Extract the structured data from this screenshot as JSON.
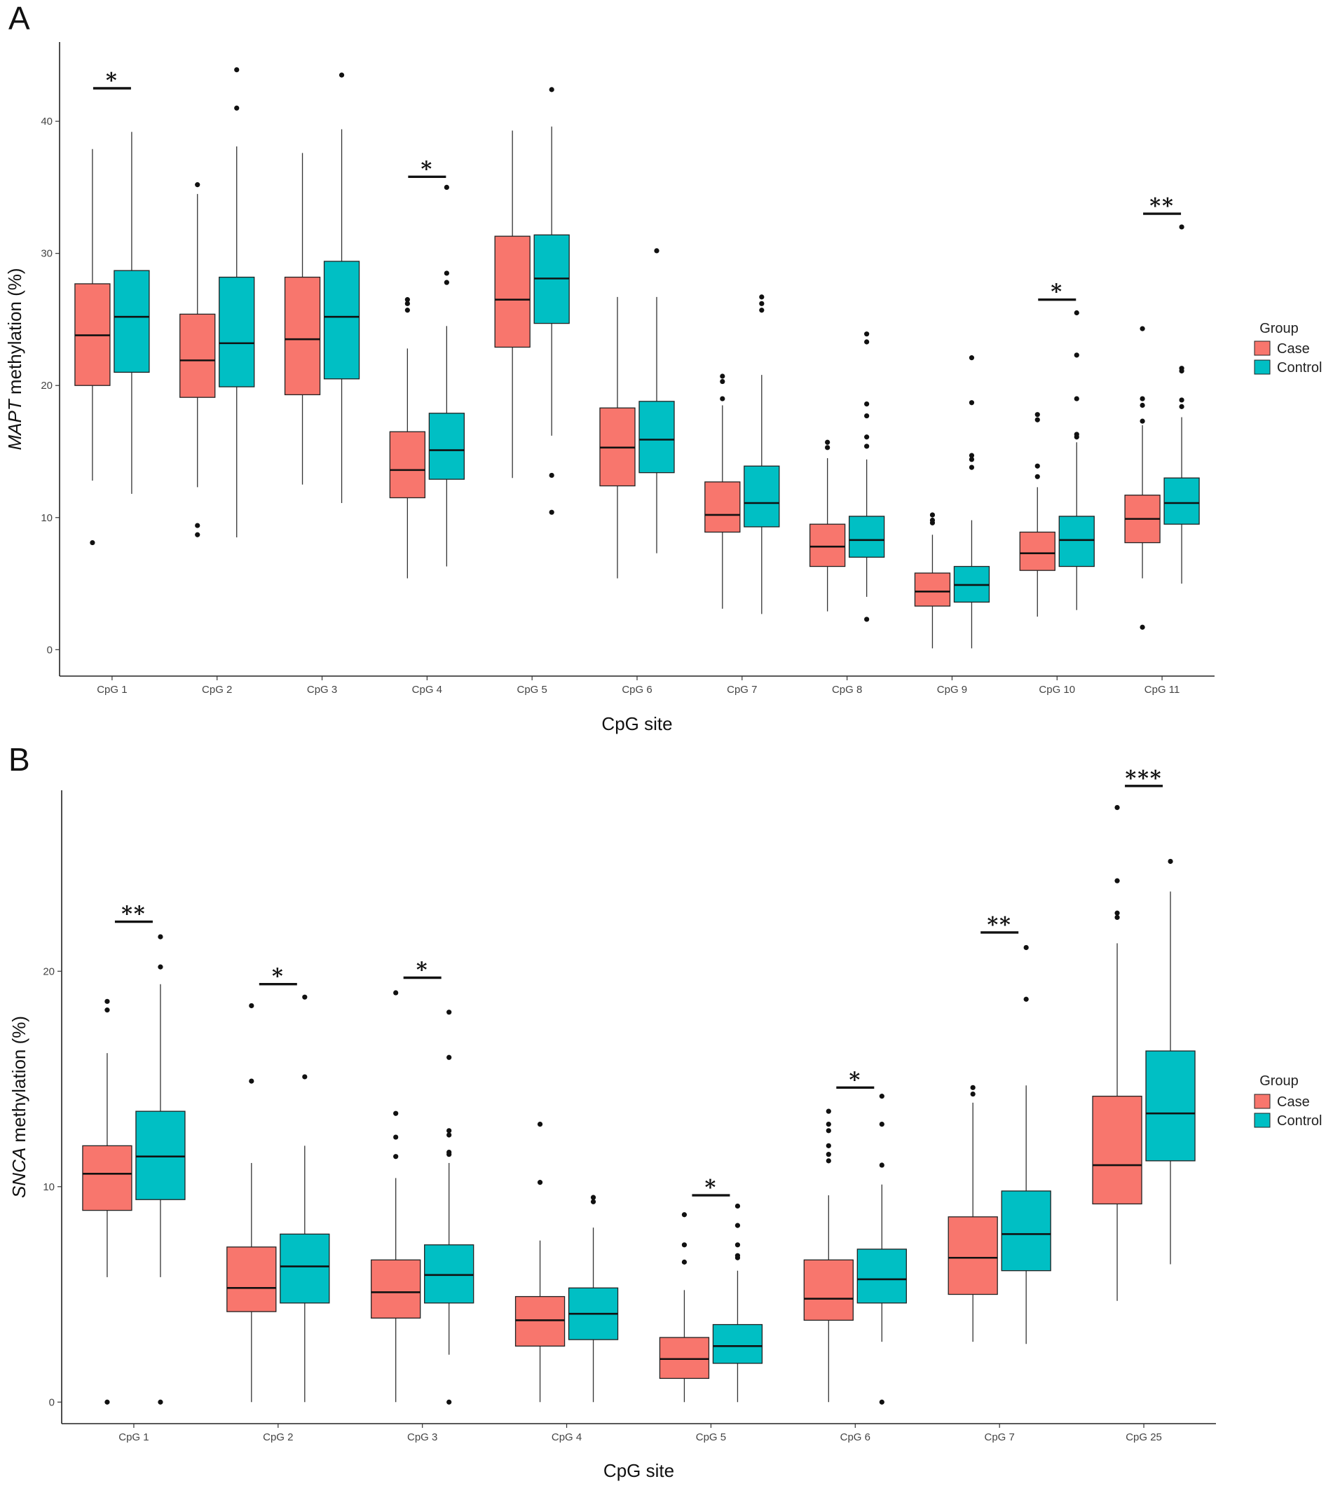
{
  "chart_data": [
    {
      "panel": "A",
      "type": "box",
      "xlabel": "CpG site",
      "ylabel_italic": "MAPT",
      "ylabel_rest": " methylation (%)",
      "ylim": [
        -2,
        46
      ],
      "yticks": [
        0,
        10,
        20,
        30,
        40
      ],
      "legend": {
        "title": "Group",
        "position": "right",
        "entries": [
          "Case",
          "Control"
        ]
      },
      "colors": {
        "Case": "#F8766D",
        "Control": "#00BFC4"
      },
      "categories": [
        "CpG 1",
        "CpG 2",
        "CpG 3",
        "CpG 4",
        "CpG 5",
        "CpG 6",
        "CpG 7",
        "CpG 8",
        "CpG 9",
        "CpG 10",
        "CpG 11"
      ],
      "series": [
        {
          "name": "Case",
          "boxes": [
            {
              "whislo": 12.8,
              "q1": 20.0,
              "med": 23.8,
              "q3": 27.7,
              "whishi": 37.9,
              "fliers": [
                8.1
              ]
            },
            {
              "whislo": 12.3,
              "q1": 19.1,
              "med": 21.9,
              "q3": 25.4,
              "whishi": 34.5,
              "fliers": [
                35.2,
                9.4,
                8.7
              ]
            },
            {
              "whislo": 12.5,
              "q1": 19.3,
              "med": 23.5,
              "q3": 28.2,
              "whishi": 37.6,
              "fliers": []
            },
            {
              "whislo": 5.4,
              "q1": 11.5,
              "med": 13.6,
              "q3": 16.5,
              "whishi": 22.8,
              "fliers": [
                26.5,
                26.2,
                25.7
              ]
            },
            {
              "whislo": 13.0,
              "q1": 22.9,
              "med": 26.5,
              "q3": 31.3,
              "whishi": 39.3,
              "fliers": []
            },
            {
              "whislo": 5.4,
              "q1": 12.4,
              "med": 15.3,
              "q3": 18.3,
              "whishi": 26.7,
              "fliers": []
            },
            {
              "whislo": 3.1,
              "q1": 8.9,
              "med": 10.2,
              "q3": 12.7,
              "whishi": 18.5,
              "fliers": [
                20.7,
                20.3,
                19.0
              ]
            },
            {
              "whislo": 2.9,
              "q1": 6.3,
              "med": 7.8,
              "q3": 9.5,
              "whishi": 14.5,
              "fliers": [
                15.7,
                15.3
              ]
            },
            {
              "whislo": 0.1,
              "q1": 3.3,
              "med": 4.4,
              "q3": 5.8,
              "whishi": 8.7,
              "fliers": [
                10.2,
                9.8,
                9.6
              ]
            },
            {
              "whislo": 2.5,
              "q1": 6.0,
              "med": 7.3,
              "q3": 8.9,
              "whishi": 12.3,
              "fliers": [
                17.8,
                17.4,
                13.9,
                13.1
              ]
            },
            {
              "whislo": 5.4,
              "q1": 8.1,
              "med": 9.9,
              "q3": 11.7,
              "whishi": 17.0,
              "fliers": [
                24.3,
                19.0,
                18.5,
                17.3,
                1.7
              ]
            }
          ]
        },
        {
          "name": "Control",
          "boxes": [
            {
              "whislo": 11.8,
              "q1": 21.0,
              "med": 25.2,
              "q3": 28.7,
              "whishi": 39.2,
              "fliers": []
            },
            {
              "whislo": 8.5,
              "q1": 19.9,
              "med": 23.2,
              "q3": 28.2,
              "whishi": 38.1,
              "fliers": [
                43.9,
                41.0
              ]
            },
            {
              "whislo": 11.1,
              "q1": 20.5,
              "med": 25.2,
              "q3": 29.4,
              "whishi": 39.4,
              "fliers": [
                43.5
              ]
            },
            {
              "whislo": 6.3,
              "q1": 12.9,
              "med": 15.1,
              "q3": 17.9,
              "whishi": 24.5,
              "fliers": [
                35.0,
                28.5,
                27.8
              ]
            },
            {
              "whislo": 16.2,
              "q1": 24.7,
              "med": 28.1,
              "q3": 31.4,
              "whishi": 39.6,
              "fliers": [
                42.4,
                13.2,
                10.4
              ]
            },
            {
              "whislo": 7.3,
              "q1": 13.4,
              "med": 15.9,
              "q3": 18.8,
              "whishi": 26.7,
              "fliers": [
                30.2
              ]
            },
            {
              "whislo": 2.7,
              "q1": 9.3,
              "med": 11.1,
              "q3": 13.9,
              "whishi": 20.8,
              "fliers": [
                26.7,
                26.2,
                25.7
              ]
            },
            {
              "whislo": 4.0,
              "q1": 7.0,
              "med": 8.3,
              "q3": 10.1,
              "whishi": 14.4,
              "fliers": [
                23.9,
                23.3,
                18.6,
                17.7,
                16.1,
                15.4,
                2.3
              ]
            },
            {
              "whislo": 0.1,
              "q1": 3.6,
              "med": 4.9,
              "q3": 6.3,
              "whishi": 9.8,
              "fliers": [
                22.1,
                18.7,
                14.7,
                14.4,
                13.8
              ]
            },
            {
              "whislo": 3.0,
              "q1": 6.3,
              "med": 8.3,
              "q3": 10.1,
              "whishi": 15.7,
              "fliers": [
                25.5,
                22.3,
                19.0,
                16.3,
                16.1
              ]
            },
            {
              "whislo": 5.0,
              "q1": 9.5,
              "med": 11.1,
              "q3": 13.0,
              "whishi": 17.6,
              "fliers": [
                32.0,
                21.3,
                21.1,
                18.9,
                18.4
              ]
            }
          ]
        }
      ],
      "significance": [
        {
          "category": "CpG 1",
          "label": "*",
          "y": 42.5
        },
        {
          "category": "CpG 4",
          "label": "*",
          "y": 35.8
        },
        {
          "category": "CpG 10",
          "label": "*",
          "y": 26.5
        },
        {
          "category": "CpG 11",
          "label": "**",
          "y": 33.0
        }
      ]
    },
    {
      "panel": "B",
      "type": "box",
      "xlabel": "CpG site",
      "ylabel_italic": "SNCA",
      "ylabel_rest": " methylation (%)",
      "ylim": [
        -1,
        28.4
      ],
      "yticks": [
        0,
        10,
        20
      ],
      "legend": {
        "title": "Group",
        "position": "right",
        "entries": [
          "Case",
          "Control"
        ]
      },
      "colors": {
        "Case": "#F8766D",
        "Control": "#00BFC4"
      },
      "categories": [
        "CpG 1",
        "CpG 2",
        "CpG 3",
        "CpG 4",
        "CpG 5",
        "CpG 6",
        "CpG 7",
        "CpG 25"
      ],
      "series": [
        {
          "name": "Case",
          "boxes": [
            {
              "whislo": 5.8,
              "q1": 8.9,
              "med": 10.6,
              "q3": 11.9,
              "whishi": 16.2,
              "fliers": [
                18.6,
                18.2,
                0.0
              ]
            },
            {
              "whislo": 0.0,
              "q1": 4.2,
              "med": 5.3,
              "q3": 7.2,
              "whishi": 11.1,
              "fliers": [
                18.4,
                14.9
              ]
            },
            {
              "whislo": 0.0,
              "q1": 3.9,
              "med": 5.1,
              "q3": 6.6,
              "whishi": 10.4,
              "fliers": [
                19.0,
                13.4,
                12.3,
                11.4
              ]
            },
            {
              "whislo": 0.0,
              "q1": 2.6,
              "med": 3.8,
              "q3": 4.9,
              "whishi": 7.5,
              "fliers": [
                12.9,
                10.2
              ]
            },
            {
              "whislo": 0.0,
              "q1": 1.1,
              "med": 2.0,
              "q3": 3.0,
              "whishi": 5.2,
              "fliers": [
                8.7,
                7.3,
                6.5
              ]
            },
            {
              "whislo": 0.0,
              "q1": 3.8,
              "med": 4.8,
              "q3": 6.6,
              "whishi": 9.6,
              "fliers": [
                13.5,
                12.9,
                12.6,
                11.9,
                11.5,
                11.2
              ]
            },
            {
              "whislo": 2.8,
              "q1": 5.0,
              "med": 6.7,
              "q3": 8.6,
              "whishi": 13.9,
              "fliers": [
                14.6,
                14.3
              ]
            },
            {
              "whislo": 4.7,
              "q1": 9.2,
              "med": 11.0,
              "q3": 14.2,
              "whishi": 21.3,
              "fliers": [
                27.6,
                24.2,
                22.7,
                22.5
              ]
            }
          ]
        },
        {
          "name": "Control",
          "boxes": [
            {
              "whislo": 5.8,
              "q1": 9.4,
              "med": 11.4,
              "q3": 13.5,
              "whishi": 19.4,
              "fliers": [
                21.6,
                20.2,
                0.0
              ]
            },
            {
              "whislo": 0.0,
              "q1": 4.6,
              "med": 6.3,
              "q3": 7.8,
              "whishi": 11.9,
              "fliers": [
                18.8,
                15.1
              ]
            },
            {
              "whislo": 2.2,
              "q1": 4.6,
              "med": 5.9,
              "q3": 7.3,
              "whishi": 11.1,
              "fliers": [
                18.1,
                16.0,
                12.6,
                12.4,
                11.6,
                11.5,
                0.0
              ]
            },
            {
              "whislo": 0.0,
              "q1": 2.9,
              "med": 4.1,
              "q3": 5.3,
              "whishi": 8.1,
              "fliers": [
                9.5,
                9.3
              ]
            },
            {
              "whislo": 0.0,
              "q1": 1.8,
              "med": 2.6,
              "q3": 3.6,
              "whishi": 6.1,
              "fliers": [
                9.1,
                8.2,
                7.3,
                6.8,
                6.7
              ]
            },
            {
              "whislo": 2.8,
              "q1": 4.6,
              "med": 5.7,
              "q3": 7.1,
              "whishi": 10.1,
              "fliers": [
                14.2,
                12.9,
                11.0,
                0.0
              ]
            },
            {
              "whislo": 2.7,
              "q1": 6.1,
              "med": 7.8,
              "q3": 9.8,
              "whishi": 14.7,
              "fliers": [
                21.1,
                18.7
              ]
            },
            {
              "whislo": 6.4,
              "q1": 11.2,
              "med": 13.4,
              "q3": 16.3,
              "whishi": 23.7,
              "fliers": [
                25.1
              ]
            }
          ]
        }
      ],
      "significance": [
        {
          "category": "CpG 1",
          "label": "**",
          "y": 22.3
        },
        {
          "category": "CpG 2",
          "label": "*",
          "y": 19.4
        },
        {
          "category": "CpG 3",
          "label": "*",
          "y": 19.7
        },
        {
          "category": "CpG 5",
          "label": "*",
          "y": 9.6
        },
        {
          "category": "CpG 6",
          "label": "*",
          "y": 14.6
        },
        {
          "category": "CpG 7",
          "label": "**",
          "y": 21.8
        },
        {
          "category": "CpG 25",
          "label": "***",
          "y": 28.6
        }
      ]
    }
  ]
}
